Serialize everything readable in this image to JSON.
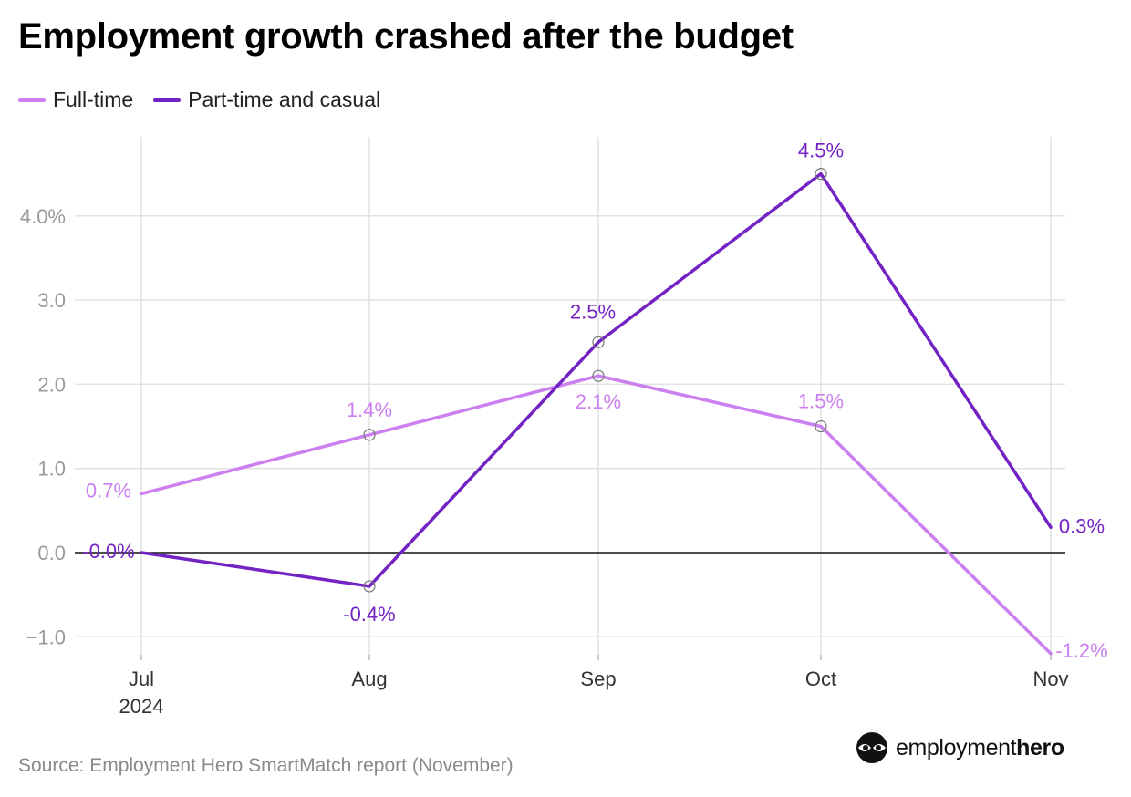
{
  "title": "Employment growth crashed after the budget",
  "source": "Source: Employment Hero SmartMatch report (November)",
  "brand": {
    "part1": "employment",
    "part2": "hero"
  },
  "colors": {
    "full_time": "#cc7ff0",
    "part_time": "#7322c4",
    "grid": "#e2e2e2",
    "zero_line": "#111111",
    "axis_text": "#999999"
  },
  "chart_data": {
    "type": "line",
    "categories": [
      "Jul",
      "Aug",
      "Sep",
      "Oct",
      "Nov"
    ],
    "category_sublabels": [
      "2024",
      "",
      "",
      "",
      ""
    ],
    "ylim": [
      -1.2,
      5.0
    ],
    "yticks": [
      -1.0,
      0.0,
      1.0,
      2.0,
      3.0,
      4.0
    ],
    "ytick_labels": [
      "−1.0",
      "0.0",
      "1.0",
      "2.0",
      "3.0",
      "4.0%"
    ],
    "grid": true,
    "legend_position": "top-left",
    "series": [
      {
        "name": "Full-time",
        "values": [
          0.7,
          1.4,
          2.1,
          1.5,
          -1.2
        ],
        "labels": [
          "0.7%",
          "1.4%",
          "2.1%",
          "1.5%",
          "-1.2%"
        ]
      },
      {
        "name": "Part-time and casual",
        "values": [
          0.0,
          -0.4,
          2.5,
          4.5,
          0.3
        ],
        "labels": [
          "-0.0%",
          "-0.4%",
          "2.5%",
          "4.5%",
          "0.3%"
        ]
      }
    ]
  }
}
